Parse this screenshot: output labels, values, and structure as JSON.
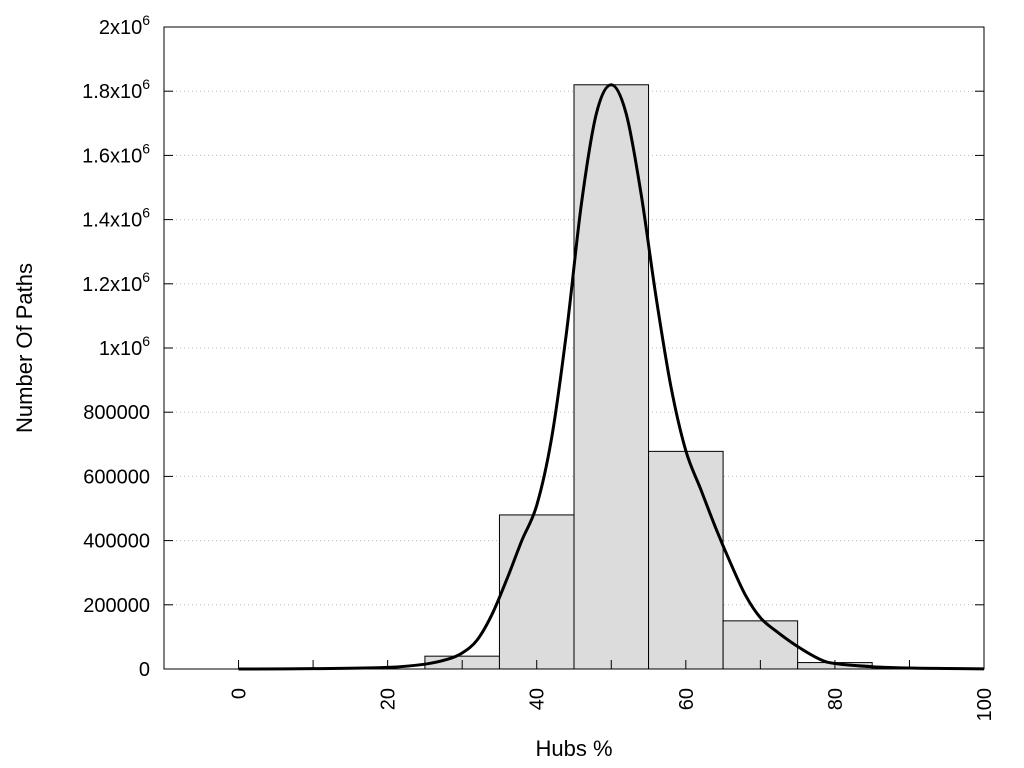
{
  "chart_data": {
    "type": "bar",
    "xlabel": "Hubs %",
    "ylabel": "Number Of Paths",
    "xlim": [
      -10,
      100
    ],
    "ylim": [
      0,
      2000000
    ],
    "grid": "horizontal-dotted",
    "legend": "none",
    "x_ticks": [
      {
        "value": 0,
        "label": "0"
      },
      {
        "value": 20,
        "label": "20"
      },
      {
        "value": 40,
        "label": "40"
      },
      {
        "value": 60,
        "label": "60"
      },
      {
        "value": 80,
        "label": "80"
      },
      {
        "value": 100,
        "label": "100"
      }
    ],
    "x_minor_ticks": [
      10,
      30,
      50,
      70,
      90
    ],
    "y_ticks": [
      {
        "value": 0,
        "mant": "0",
        "exp": ""
      },
      {
        "value": 200000,
        "mant": "200000",
        "exp": ""
      },
      {
        "value": 400000,
        "mant": "400000",
        "exp": ""
      },
      {
        "value": 600000,
        "mant": "600000",
        "exp": ""
      },
      {
        "value": 800000,
        "mant": "800000",
        "exp": ""
      },
      {
        "value": 1000000,
        "mant": "1x10",
        "exp": "6"
      },
      {
        "value": 1200000,
        "mant": "1.2x10",
        "exp": "6"
      },
      {
        "value": 1400000,
        "mant": "1.4x10",
        "exp": "6"
      },
      {
        "value": 1600000,
        "mant": "1.6x10",
        "exp": "6"
      },
      {
        "value": 1800000,
        "mant": "1.8x10",
        "exp": "6"
      },
      {
        "value": 2000000,
        "mant": "2x10",
        "exp": "6"
      }
    ],
    "bins": [
      {
        "x0": 25,
        "x1": 35,
        "value": 40000
      },
      {
        "x0": 35,
        "x1": 45,
        "value": 480000
      },
      {
        "x0": 45,
        "x1": 55,
        "value": 1820000
      },
      {
        "x0": 55,
        "x1": 65,
        "value": 678000
      },
      {
        "x0": 65,
        "x1": 75,
        "value": 150000
      },
      {
        "x0": 75,
        "x1": 85,
        "value": 20000
      }
    ],
    "fit_curve": {
      "x": [
        0,
        10,
        20,
        25,
        28,
        30,
        32,
        34,
        36,
        38,
        40,
        42,
        44,
        46,
        48,
        50,
        52,
        54,
        56,
        58,
        60,
        62,
        64,
        66,
        68,
        70,
        72,
        75,
        78,
        80,
        85,
        90,
        95,
        100
      ],
      "y": [
        0,
        1000,
        5000,
        15000,
        30000,
        50000,
        90000,
        170000,
        280000,
        400000,
        510000,
        720000,
        1050000,
        1450000,
        1730000,
        1820000,
        1730000,
        1480000,
        1160000,
        880000,
        680000,
        560000,
        440000,
        330000,
        230000,
        160000,
        120000,
        70000,
        30000,
        17000,
        7000,
        3000,
        1500,
        500
      ]
    },
    "colors": {
      "bar_fill": "#dcdcdc",
      "bar_stroke": "#000000",
      "curve": "#000000",
      "grid": "#bbbbbb"
    }
  }
}
